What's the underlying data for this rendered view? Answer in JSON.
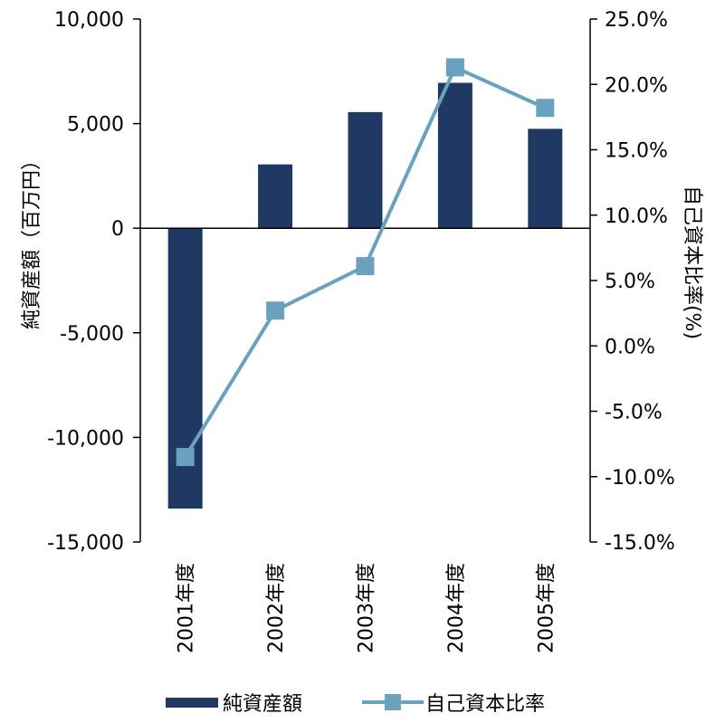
{
  "chart_data": {
    "type": "bar+line",
    "categories": [
      "2001年度",
      "2002年度",
      "2003年度",
      "2004年度",
      "2005年度"
    ],
    "series": [
      {
        "name": "純資産額",
        "type": "bar",
        "axis": "left",
        "color": "#1f3864",
        "values": [
          -13400,
          3050,
          5550,
          6950,
          4750
        ]
      },
      {
        "name": "自己資本比率",
        "type": "line",
        "axis": "right",
        "color": "#6aa1be",
        "values": [
          -8.5,
          2.7,
          6.1,
          21.3,
          18.2
        ]
      }
    ],
    "ylabel": "純資産額（百万円）",
    "y2label": "自己資本比率(%)",
    "ylim": [
      -15000,
      10000
    ],
    "y2lim": [
      -15,
      25
    ],
    "yticks": [
      "10,000",
      "5,000",
      "0",
      "-5,000",
      "-10,000",
      "-15,000"
    ],
    "y2ticks": [
      "25.0%",
      "20.0%",
      "15.0%",
      "10.0%",
      "5.0%",
      "0.0%",
      "-5.0%",
      "-10.0%",
      "-15.0%"
    ],
    "legend": "bottom",
    "grid": false
  }
}
